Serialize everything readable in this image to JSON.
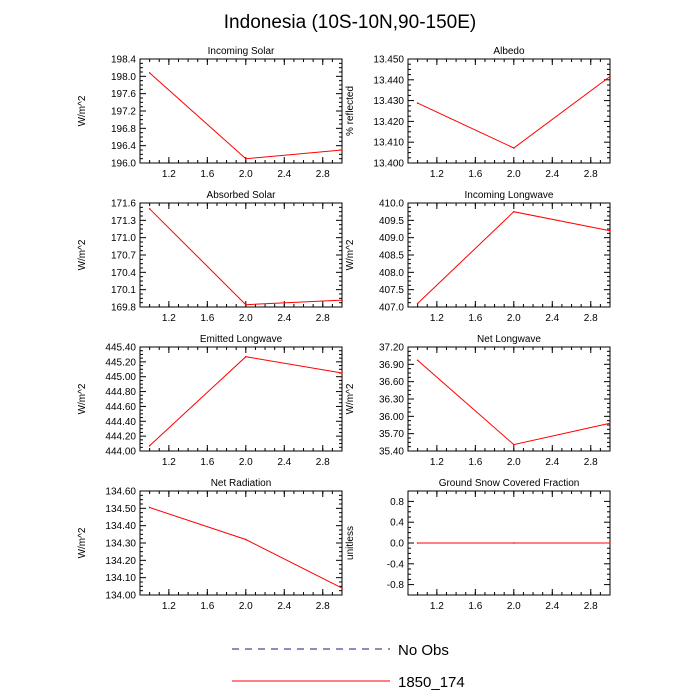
{
  "title": "Indonesia (10S-10N,90-150E)",
  "colors": {
    "series": "#ff0000",
    "obs": "#1a1a80"
  },
  "legend": {
    "obs_label": "No Obs",
    "model_label": "1850_174"
  },
  "chart_data": [
    {
      "type": "line",
      "title": "Incoming Solar",
      "xlabel": "",
      "ylabel": "W/m^2",
      "x": [
        1,
        2,
        3
      ],
      "values": [
        198.08,
        196.1,
        196.3
      ],
      "xlim": [
        0.9,
        3.0
      ],
      "ylim": [
        196.0,
        198.4
      ],
      "xticks": [
        1.2,
        1.6,
        2.0,
        2.4,
        2.8
      ],
      "xtick_labels": [
        "1.2",
        "1.6",
        "2.0",
        "2.4",
        "2.8"
      ],
      "yticks": [
        196.0,
        196.4,
        196.8,
        197.2,
        197.6,
        198.0,
        198.4
      ],
      "ytick_labels": [
        "196.0",
        "196.4",
        "196.8",
        "197.2",
        "197.6",
        "198.0",
        "198.4"
      ],
      "series_name": "1850_174"
    },
    {
      "type": "line",
      "title": "Albedo",
      "xlabel": "",
      "ylabel": "% reflected",
      "x": [
        1,
        2,
        3
      ],
      "values": [
        13.4288,
        13.4072,
        13.4416
      ],
      "xlim": [
        0.9,
        3.0
      ],
      "ylim": [
        13.4,
        13.45
      ],
      "xticks": [
        1.2,
        1.6,
        2.0,
        2.4,
        2.8
      ],
      "xtick_labels": [
        "1.2",
        "1.6",
        "2.0",
        "2.4",
        "2.8"
      ],
      "yticks": [
        13.4,
        13.41,
        13.42,
        13.43,
        13.44,
        13.45
      ],
      "ytick_labels": [
        "13.400",
        "13.410",
        "13.420",
        "13.430",
        "13.440",
        "13.450"
      ],
      "series_name": "1850_174"
    },
    {
      "type": "line",
      "title": "Absorbed Solar",
      "xlabel": "",
      "ylabel": "W/m^2",
      "x": [
        1,
        2,
        3
      ],
      "values": [
        171.5,
        169.84,
        169.92
      ],
      "xlim": [
        0.9,
        3.0
      ],
      "ylim": [
        169.8,
        171.6
      ],
      "xticks": [
        1.2,
        1.6,
        2.0,
        2.4,
        2.8
      ],
      "xtick_labels": [
        "1.2",
        "1.6",
        "2.0",
        "2.4",
        "2.8"
      ],
      "yticks": [
        169.8,
        170.1,
        170.4,
        170.7,
        171.0,
        171.3,
        171.6
      ],
      "ytick_labels": [
        "169.8",
        "170.1",
        "170.4",
        "170.7",
        "171.0",
        "171.3",
        "171.6"
      ],
      "series_name": "1850_174"
    },
    {
      "type": "line",
      "title": "Incoming Longwave",
      "xlabel": "",
      "ylabel": "W/m^2",
      "x": [
        1,
        2,
        3
      ],
      "values": [
        407.1,
        409.75,
        409.2
      ],
      "xlim": [
        0.9,
        3.0
      ],
      "ylim": [
        407.0,
        410.0
      ],
      "xticks": [
        1.2,
        1.6,
        2.0,
        2.4,
        2.8
      ],
      "xtick_labels": [
        "1.2",
        "1.6",
        "2.0",
        "2.4",
        "2.8"
      ],
      "yticks": [
        407.0,
        407.5,
        408.0,
        408.5,
        409.0,
        409.5,
        410.0
      ],
      "ytick_labels": [
        "407.0",
        "407.5",
        "408.0",
        "408.5",
        "409.0",
        "409.5",
        "410.0"
      ],
      "series_name": "1850_174"
    },
    {
      "type": "line",
      "title": "Emitted Longwave",
      "xlabel": "",
      "ylabel": "W/m^2",
      "x": [
        1,
        2,
        3
      ],
      "values": [
        444.07,
        445.27,
        445.05
      ],
      "xlim": [
        0.9,
        3.0
      ],
      "ylim": [
        444.0,
        445.4
      ],
      "xticks": [
        1.2,
        1.6,
        2.0,
        2.4,
        2.8
      ],
      "xtick_labels": [
        "1.2",
        "1.6",
        "2.0",
        "2.4",
        "2.8"
      ],
      "yticks": [
        444.0,
        444.2,
        444.4,
        444.6,
        444.8,
        445.0,
        445.2,
        445.4
      ],
      "ytick_labels": [
        "444.00",
        "444.20",
        "444.40",
        "444.60",
        "444.80",
        "445.00",
        "445.20",
        "445.40"
      ],
      "series_name": "1850_174"
    },
    {
      "type": "line",
      "title": "Net Longwave",
      "xlabel": "",
      "ylabel": "W/m^2",
      "x": [
        1,
        2,
        3
      ],
      "values": [
        36.97,
        35.51,
        35.88
      ],
      "xlim": [
        0.9,
        3.0
      ],
      "ylim": [
        35.4,
        37.2
      ],
      "xticks": [
        1.2,
        1.6,
        2.0,
        2.4,
        2.8
      ],
      "xtick_labels": [
        "1.2",
        "1.6",
        "2.0",
        "2.4",
        "2.8"
      ],
      "yticks": [
        35.4,
        35.7,
        36.0,
        36.3,
        36.6,
        36.9,
        37.2
      ],
      "ytick_labels": [
        "35.40",
        "35.70",
        "36.00",
        "36.30",
        "36.60",
        "36.90",
        "37.20"
      ],
      "series_name": "1850_174"
    },
    {
      "type": "line",
      "title": "Net Radiation",
      "xlabel": "",
      "ylabel": "W/m^2",
      "x": [
        1,
        2,
        3
      ],
      "values": [
        134.505,
        134.32,
        134.04
      ],
      "xlim": [
        0.9,
        3.0
      ],
      "ylim": [
        134.0,
        134.6
      ],
      "xticks": [
        1.2,
        1.6,
        2.0,
        2.4,
        2.8
      ],
      "xtick_labels": [
        "1.2",
        "1.6",
        "2.0",
        "2.4",
        "2.8"
      ],
      "yticks": [
        134.0,
        134.1,
        134.2,
        134.3,
        134.4,
        134.5,
        134.6
      ],
      "ytick_labels": [
        "134.00",
        "134.10",
        "134.20",
        "134.30",
        "134.40",
        "134.50",
        "134.60"
      ],
      "series_name": "1850_174"
    },
    {
      "type": "line",
      "title": "Ground Snow Covered Fraction",
      "xlabel": "",
      "ylabel": "unitless",
      "x": [
        1,
        2,
        3
      ],
      "values": [
        0.0,
        0.0,
        0.0
      ],
      "xlim": [
        0.9,
        3.0
      ],
      "ylim": [
        -1.0,
        1.0
      ],
      "xticks": [
        1.2,
        1.6,
        2.0,
        2.4,
        2.8
      ],
      "xtick_labels": [
        "1.2",
        "1.6",
        "2.0",
        "2.4",
        "2.8"
      ],
      "yticks": [
        -0.8,
        -0.4,
        0.0,
        0.4,
        0.8
      ],
      "ytick_labels": [
        "-0.8",
        "-0.4",
        "0.0",
        "0.4",
        "0.8"
      ],
      "series_name": "1850_174"
    }
  ]
}
